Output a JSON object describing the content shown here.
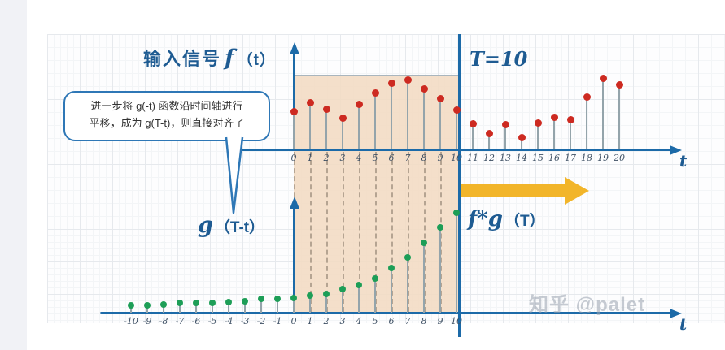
{
  "page": {
    "watermark": "知乎 @palet"
  },
  "labels": {
    "title_prefix": "输入信号",
    "title_f": "f",
    "title_arg": "（t）",
    "T_marker": "T=10",
    "g_label": "g",
    "g_arg": "（T-t）",
    "fg_label": "f*g",
    "fg_arg": "（T）",
    "t_axis_top": "t",
    "t_axis_bottom": "t"
  },
  "callout": {
    "line1": "进一步将 g(-t) 函数沿时间轴进行",
    "line2": "平移，成为 g(T-t)，则直接对齐了"
  },
  "colors": {
    "axis": "#1c6aa8",
    "f_dot": "#cd2a21",
    "g_dot": "#1d9e57",
    "stem": "#94a4ab",
    "shade": "#f3dbc3",
    "arrow": "#f2b52a",
    "label_blue": "#1e5b92",
    "callout_border": "#2e77b6"
  },
  "chart_data": [
    {
      "type": "stem",
      "name": "f(t)",
      "title": "输入信号 f（t）",
      "xlabel": "t",
      "x": [
        0,
        1,
        2,
        3,
        4,
        5,
        6,
        7,
        8,
        9,
        10,
        11,
        12,
        13,
        14,
        15,
        16,
        17,
        18,
        19,
        20
      ],
      "values": [
        0.51,
        0.62,
        0.54,
        0.42,
        0.6,
        0.76,
        0.89,
        0.93,
        0.81,
        0.68,
        0.53,
        0.34,
        0.21,
        0.33,
        0.16,
        0.35,
        0.43,
        0.4,
        0.7,
        0.95,
        0.86
      ],
      "color": "#cd2a21",
      "shaded_interval": [
        0,
        10
      ],
      "annotation": "T=10",
      "ylim": [
        0,
        1
      ],
      "grid": true
    },
    {
      "type": "stem",
      "name": "g(T-t)",
      "title": "g（T-t）",
      "xlabel": "t",
      "x": [
        -10,
        -9,
        -8,
        -7,
        -6,
        -5,
        -4,
        -3,
        -2,
        -1,
        0,
        1,
        2,
        3,
        4,
        5,
        6,
        7,
        8,
        9,
        10
      ],
      "values": [
        0.07,
        0.07,
        0.08,
        0.09,
        0.09,
        0.09,
        0.1,
        0.11,
        0.13,
        0.13,
        0.14,
        0.16,
        0.18,
        0.22,
        0.26,
        0.32,
        0.42,
        0.52,
        0.66,
        0.81,
        0.95
      ],
      "color": "#1d9e57",
      "result_label": "f*g（T）",
      "ylim": [
        0,
        1
      ],
      "grid": true
    }
  ]
}
